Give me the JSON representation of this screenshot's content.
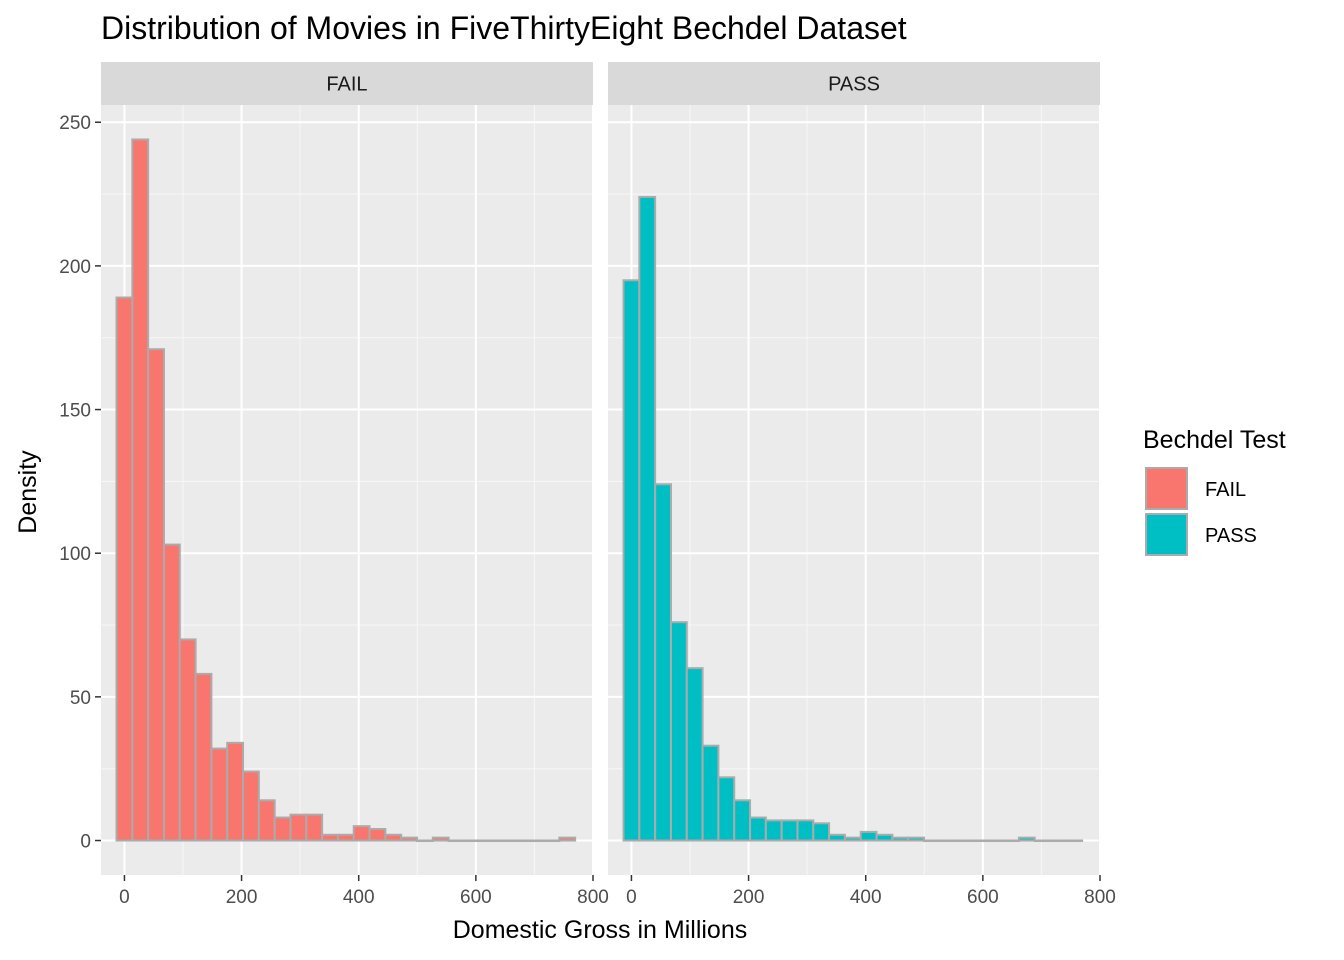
{
  "chart_data": {
    "type": "bar",
    "title": "Distribution of Movies in FiveThirtyEight Bechdel Dataset",
    "xlabel": "Domestic Gross in Millions",
    "ylabel": "Density",
    "xlim": [
      -40,
      800
    ],
    "ylim": [
      -12,
      256
    ],
    "xticks": [
      0,
      200,
      400,
      600,
      800
    ],
    "yticks": [
      0,
      50,
      100,
      150,
      200,
      250
    ],
    "bin_width": 27,
    "bin_centers": [
      0,
      27,
      54,
      81,
      108,
      135,
      162,
      189,
      216,
      243,
      270,
      297,
      324,
      351,
      378,
      405,
      432,
      459,
      486,
      513,
      540,
      567,
      594,
      621,
      648,
      675,
      702,
      729,
      756
    ],
    "grid": true,
    "legend": {
      "title": "Bechdel Test",
      "position": "right",
      "entries": [
        {
          "label": "FAIL",
          "color": "#F8766D"
        },
        {
          "label": "PASS",
          "color": "#00BFC4"
        }
      ]
    },
    "panels": [
      {
        "name": "FAIL",
        "color": "#F8766D",
        "values": [
          189,
          244,
          171,
          103,
          70,
          58,
          32,
          34,
          24,
          14,
          8,
          9,
          9,
          2,
          2,
          5,
          4,
          2,
          1,
          0,
          1,
          0,
          0,
          0,
          0,
          0,
          0,
          0,
          1
        ]
      },
      {
        "name": "PASS",
        "color": "#00BFC4",
        "values": [
          195,
          224,
          124,
          76,
          60,
          33,
          22,
          14,
          8,
          7,
          7,
          7,
          6,
          2,
          1,
          3,
          2,
          1,
          1,
          0,
          0,
          0,
          0,
          0,
          0,
          1,
          0,
          0,
          0
        ]
      }
    ]
  }
}
